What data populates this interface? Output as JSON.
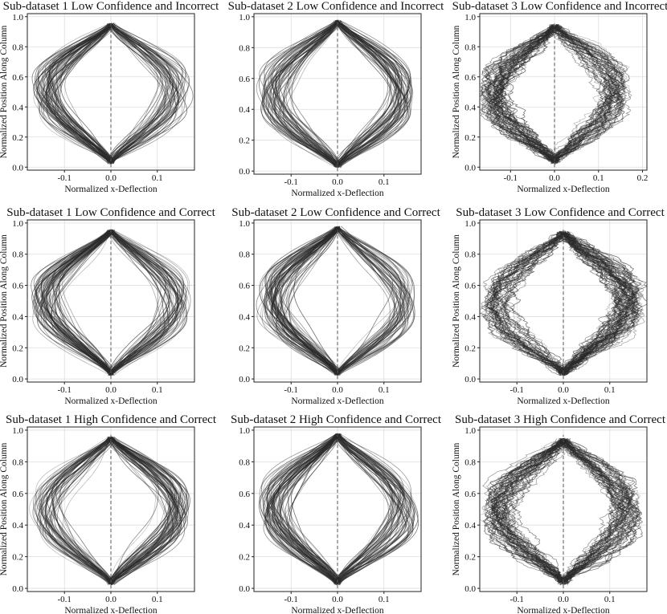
{
  "chart_data": [
    {
      "type": "line",
      "title": "Sub-dataset 1 Low Confidence and Incorrect",
      "xlabel": "Normalized x-Deflection",
      "ylabel": "Normalized Position Along Column",
      "xlim": [
        -0.18,
        0.18
      ],
      "ylim": [
        -0.02,
        1.02
      ],
      "xticks": [
        -0.1,
        0.0,
        0.1
      ],
      "yticks": [
        0.0,
        0.2,
        0.4,
        0.6,
        0.8,
        1.0
      ],
      "grid": true,
      "y_top": 0.96,
      "amplitude_max": 0.16,
      "n_lines": 120,
      "noise": "smooth"
    },
    {
      "type": "line",
      "title": "Sub-dataset 2 Low Confidence and Incorrect",
      "xlabel": "Normalized x-Deflection",
      "ylabel": "",
      "xlim": [
        -0.18,
        0.18
      ],
      "ylim": [
        -0.02,
        1.02
      ],
      "xticks": [
        -0.1,
        0.0,
        0.1
      ],
      "yticks": [
        0.0,
        0.2,
        0.4,
        0.6,
        0.8,
        1.0
      ],
      "grid": true,
      "y_top": 0.98,
      "amplitude_max": 0.16,
      "n_lines": 120,
      "noise": "smooth"
    },
    {
      "type": "line",
      "title": "Sub-dataset 3 Low Confidence and Incorrect",
      "xlabel": "Normalized x-Deflection",
      "ylabel": "Normalized Position Along Column",
      "xlim": [
        -0.17,
        0.21
      ],
      "ylim": [
        -0.02,
        1.02
      ],
      "xticks": [
        -0.1,
        0.0,
        0.1,
        0.2
      ],
      "yticks": [
        0.0,
        0.2,
        0.4,
        0.6,
        0.8,
        1.0
      ],
      "grid": true,
      "y_top": 0.95,
      "amplitude_max": 0.16,
      "n_lines": 100,
      "noise": "jagged"
    },
    {
      "type": "line",
      "title": "Sub-dataset 1 Low Confidence and Correct",
      "xlabel": "Normalized x-Deflection",
      "ylabel": "Normalized Position Along Column",
      "xlim": [
        -0.18,
        0.18
      ],
      "ylim": [
        -0.02,
        1.02
      ],
      "xticks": [
        -0.1,
        0.0,
        0.1
      ],
      "yticks": [
        0.0,
        0.2,
        0.4,
        0.6,
        0.8,
        1.0
      ],
      "grid": true,
      "y_top": 0.96,
      "amplitude_max": 0.16,
      "n_lines": 120,
      "noise": "smooth"
    },
    {
      "type": "line",
      "title": "Sub-dataset 2 Low Confidence and Correct",
      "xlabel": "Normalized x-Deflection",
      "ylabel": "",
      "xlim": [
        -0.18,
        0.18
      ],
      "ylim": [
        -0.02,
        1.02
      ],
      "xticks": [
        -0.1,
        0.0,
        0.1
      ],
      "yticks": [
        0.0,
        0.2,
        0.4,
        0.6,
        0.8,
        1.0
      ],
      "grid": true,
      "y_top": 0.98,
      "amplitude_max": 0.16,
      "n_lines": 120,
      "noise": "smooth"
    },
    {
      "type": "line",
      "title": "Sub-dataset 3 Low Confidence and Correct",
      "xlabel": "Normalized x-Deflection",
      "ylabel": "Normalized Position Along Column",
      "xlim": [
        -0.18,
        0.18
      ],
      "ylim": [
        -0.02,
        1.02
      ],
      "xticks": [
        -0.1,
        0.0,
        0.1
      ],
      "yticks": [
        0.0,
        0.2,
        0.4,
        0.6,
        0.8,
        1.0
      ],
      "grid": true,
      "y_top": 0.95,
      "amplitude_max": 0.16,
      "n_lines": 100,
      "noise": "jagged"
    },
    {
      "type": "line",
      "title": "Sub-dataset 1 High Confidence and Correct",
      "xlabel": "Normalized x-Deflection",
      "ylabel": "Normalized Position Along Column",
      "xlim": [
        -0.18,
        0.18
      ],
      "ylim": [
        -0.02,
        1.02
      ],
      "xticks": [
        -0.1,
        0.0,
        0.1
      ],
      "yticks": [
        0.0,
        0.2,
        0.4,
        0.6,
        0.8,
        1.0
      ],
      "grid": true,
      "y_top": 0.96,
      "amplitude_max": 0.16,
      "n_lines": 120,
      "noise": "smooth"
    },
    {
      "type": "line",
      "title": "Sub-dataset 2 High Confidence and Correct",
      "xlabel": "Normalized x-Deflection",
      "ylabel": "",
      "xlim": [
        -0.18,
        0.18
      ],
      "ylim": [
        -0.02,
        1.02
      ],
      "xticks": [
        -0.1,
        0.0,
        0.1
      ],
      "yticks": [
        0.0,
        0.2,
        0.4,
        0.6,
        0.8,
        1.0
      ],
      "grid": true,
      "y_top": 0.98,
      "amplitude_max": 0.16,
      "n_lines": 120,
      "noise": "smooth"
    },
    {
      "type": "line",
      "title": "Sub-dataset 3 High Confidence and Correct",
      "xlabel": "Normalized x-Deflection",
      "ylabel": "Normalized Position Along Column",
      "xlim": [
        -0.18,
        0.18
      ],
      "ylim": [
        -0.02,
        1.02
      ],
      "xticks": [
        -0.1,
        0.0,
        0.1
      ],
      "yticks": [
        0.0,
        0.2,
        0.4,
        0.6,
        0.8,
        1.0
      ],
      "grid": true,
      "y_top": 0.95,
      "amplitude_max": 0.16,
      "n_lines": 100,
      "noise": "jagged"
    }
  ],
  "colors": {
    "line": "#2a2a2a",
    "grid": "#dddddd",
    "frame": "#222222",
    "centerline": "#555555"
  }
}
